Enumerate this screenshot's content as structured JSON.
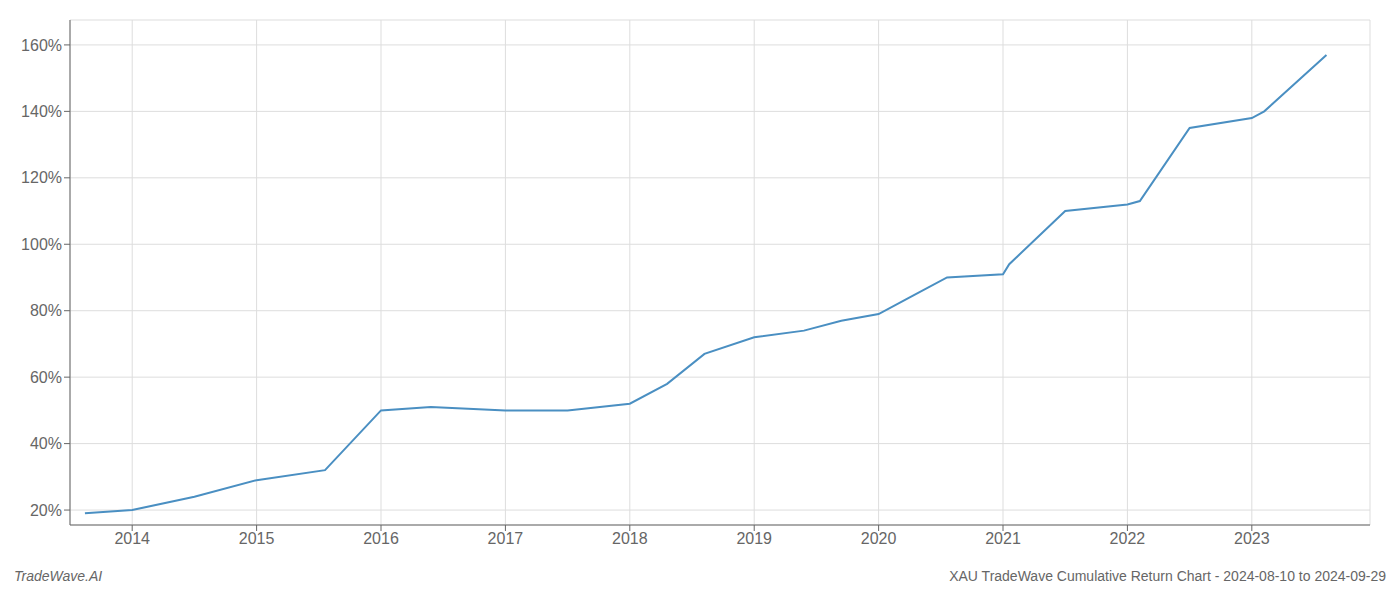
{
  "chart_data": {
    "type": "line",
    "x": [
      2013.62,
      2014.0,
      2014.5,
      2015.0,
      2015.55,
      2016.0,
      2016.4,
      2017.0,
      2017.5,
      2018.0,
      2018.3,
      2018.6,
      2019.0,
      2019.4,
      2019.7,
      2020.0,
      2020.25,
      2020.55,
      2021.0,
      2021.05,
      2021.5,
      2022.0,
      2022.1,
      2022.5,
      2023.0,
      2023.1,
      2023.6
    ],
    "values": [
      0.19,
      0.2,
      0.24,
      0.29,
      0.32,
      0.5,
      0.51,
      0.5,
      0.5,
      0.52,
      0.58,
      0.67,
      0.72,
      0.74,
      0.77,
      0.79,
      0.84,
      0.9,
      0.91,
      0.94,
      1.1,
      1.12,
      1.13,
      1.35,
      1.38,
      1.4,
      1.57
    ],
    "color": "#4a8fc2",
    "xlim": [
      2013.5,
      2023.95
    ],
    "xticks": [
      2014,
      2015,
      2016,
      2017,
      2018,
      2019,
      2020,
      2021,
      2022,
      2023
    ],
    "ylim": [
      0.155,
      1.675
    ],
    "yticks": [
      {
        "value": 0.2,
        "label": "20%"
      },
      {
        "value": 0.4,
        "label": "40%"
      },
      {
        "value": 0.6,
        "label": "60%"
      },
      {
        "value": 0.8,
        "label": "80%"
      },
      {
        "value": 1.0,
        "label": "100%"
      },
      {
        "value": 1.2,
        "label": "120%"
      },
      {
        "value": 1.4,
        "label": "140%"
      },
      {
        "value": 1.6,
        "label": "160%"
      }
    ],
    "grid": true,
    "annotations": [
      "TradeWave.AI",
      "XAU TradeWave Cumulative Return Chart - 2024-08-10 to 2024-09-29"
    ]
  }
}
